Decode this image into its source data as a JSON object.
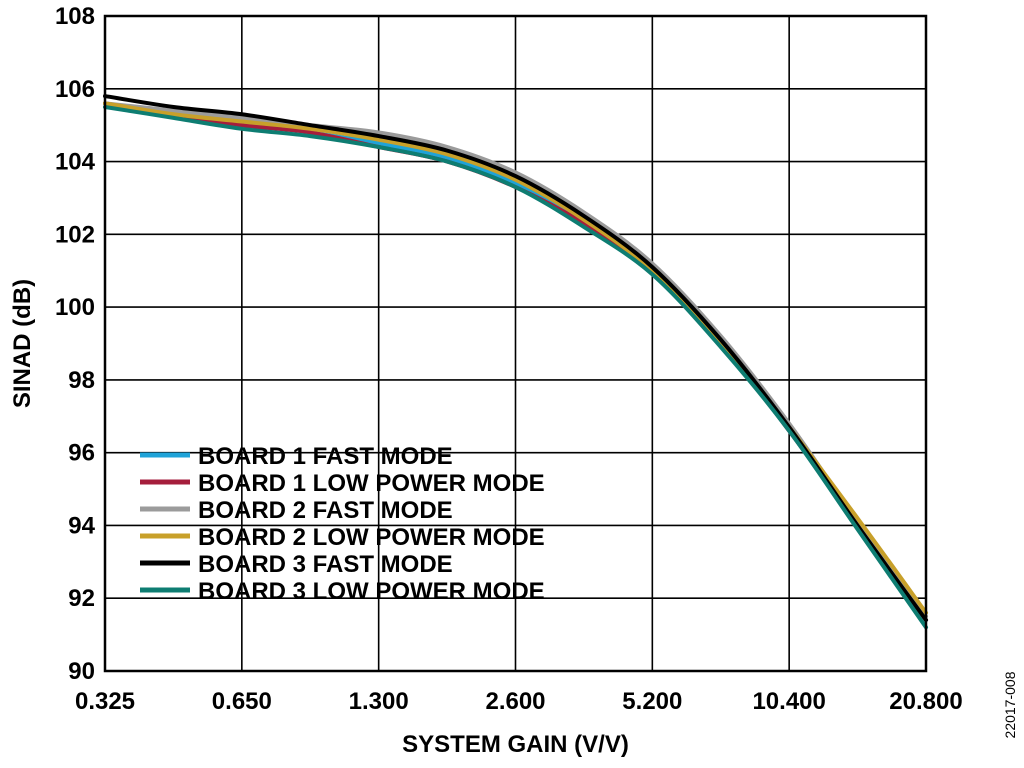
{
  "chart_data": {
    "type": "line",
    "title": "",
    "xlabel": "SYSTEM GAIN (V/V)",
    "ylabel": "SINAD (dB)",
    "x_scale": "log2",
    "xlim": [
      0.325,
      20.8
    ],
    "ylim": [
      90,
      108
    ],
    "x_ticks": [
      0.325,
      0.65,
      1.3,
      2.6,
      5.2,
      10.4,
      20.8
    ],
    "x_tick_labels": [
      "0.325",
      "0.650",
      "1.300",
      "2.600",
      "5.200",
      "10.400",
      "20.800"
    ],
    "y_ticks": [
      90,
      92,
      94,
      96,
      98,
      100,
      102,
      104,
      106,
      108
    ],
    "y_tick_labels": [
      "90",
      "92",
      "94",
      "96",
      "98",
      "100",
      "102",
      "104",
      "106",
      "108"
    ],
    "grid": true,
    "legend_position": "bottom-left",
    "x": [
      0.325,
      0.46,
      0.65,
      0.92,
      1.3,
      1.84,
      2.6,
      3.68,
      5.2,
      7.36,
      10.4,
      14.7,
      20.8
    ],
    "series": [
      {
        "name": "BOARD 1 FAST MODE",
        "color": "#1fa3d8",
        "values": [
          105.6,
          105.3,
          105.1,
          104.8,
          104.5,
          104.1,
          103.4,
          102.4,
          101.0,
          99.0,
          96.6,
          94.0,
          91.4
        ]
      },
      {
        "name": "BOARD 1 LOW POWER MODE",
        "color": "#a51e3c",
        "values": [
          105.6,
          105.3,
          105.0,
          104.8,
          104.4,
          104.0,
          103.3,
          102.3,
          101.0,
          99.0,
          96.6,
          94.0,
          91.4
        ]
      },
      {
        "name": "BOARD 2 FAST MODE",
        "color": "#9b9b9b",
        "values": [
          105.6,
          105.4,
          105.2,
          105.0,
          104.8,
          104.4,
          103.7,
          102.6,
          101.2,
          99.2,
          96.8,
          94.1,
          91.5
        ]
      },
      {
        "name": "BOARD 2 LOW POWER MODE",
        "color": "#c8a02a",
        "values": [
          105.6,
          105.3,
          105.1,
          104.9,
          104.6,
          104.2,
          103.5,
          102.4,
          101.0,
          99.0,
          96.7,
          94.2,
          91.6
        ]
      },
      {
        "name": "BOARD 3 FAST MODE",
        "color": "#000000",
        "values": [
          105.8,
          105.5,
          105.3,
          105.0,
          104.7,
          104.3,
          103.6,
          102.5,
          101.1,
          99.1,
          96.7,
          94.0,
          91.4
        ]
      },
      {
        "name": "BOARD 3 LOW POWER MODE",
        "color": "#0e7d72",
        "values": [
          105.5,
          105.2,
          104.9,
          104.7,
          104.4,
          104.0,
          103.3,
          102.2,
          100.9,
          98.9,
          96.6,
          93.9,
          91.2
        ]
      }
    ]
  },
  "figure_id": "22017-008"
}
